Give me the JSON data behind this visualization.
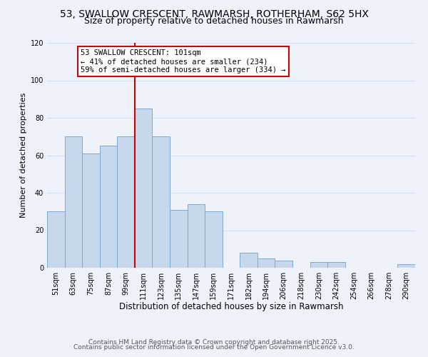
{
  "title": "53, SWALLOW CRESCENT, RAWMARSH, ROTHERHAM, S62 5HX",
  "subtitle": "Size of property relative to detached houses in Rawmarsh",
  "xlabel": "Distribution of detached houses by size in Rawmarsh",
  "ylabel": "Number of detached properties",
  "bar_labels": [
    "51sqm",
    "63sqm",
    "75sqm",
    "87sqm",
    "99sqm",
    "111sqm",
    "123sqm",
    "135sqm",
    "147sqm",
    "159sqm",
    "171sqm",
    "182sqm",
    "194sqm",
    "206sqm",
    "218sqm",
    "230sqm",
    "242sqm",
    "254sqm",
    "266sqm",
    "278sqm",
    "290sqm"
  ],
  "bar_heights": [
    30,
    70,
    61,
    65,
    70,
    85,
    70,
    31,
    34,
    30,
    0,
    8,
    5,
    4,
    0,
    3,
    3,
    0,
    0,
    0,
    2
  ],
  "bar_color": "#c8d8ec",
  "bar_edgecolor": "#7baad0",
  "vline_x": 4.5,
  "vline_color": "#cc0000",
  "annotation_title": "53 SWALLOW CRESCENT: 101sqm",
  "annotation_line1": "← 41% of detached houses are smaller (234)",
  "annotation_line2": "59% of semi-detached houses are larger (334) →",
  "annotation_box_facecolor": "#ffffff",
  "annotation_box_edgecolor": "#cc0000",
  "ylim": [
    0,
    120
  ],
  "yticks": [
    0,
    20,
    40,
    60,
    80,
    100,
    120
  ],
  "background_color": "#eef2fb",
  "grid_color": "#d8dff0",
  "footer_line1": "Contains HM Land Registry data © Crown copyright and database right 2025.",
  "footer_line2": "Contains public sector information licensed under the Open Government Licence v3.0.",
  "title_fontsize": 10,
  "subtitle_fontsize": 9,
  "xlabel_fontsize": 8.5,
  "ylabel_fontsize": 8,
  "tick_fontsize": 7,
  "annotation_fontsize": 7.5,
  "footer_fontsize": 6.5
}
